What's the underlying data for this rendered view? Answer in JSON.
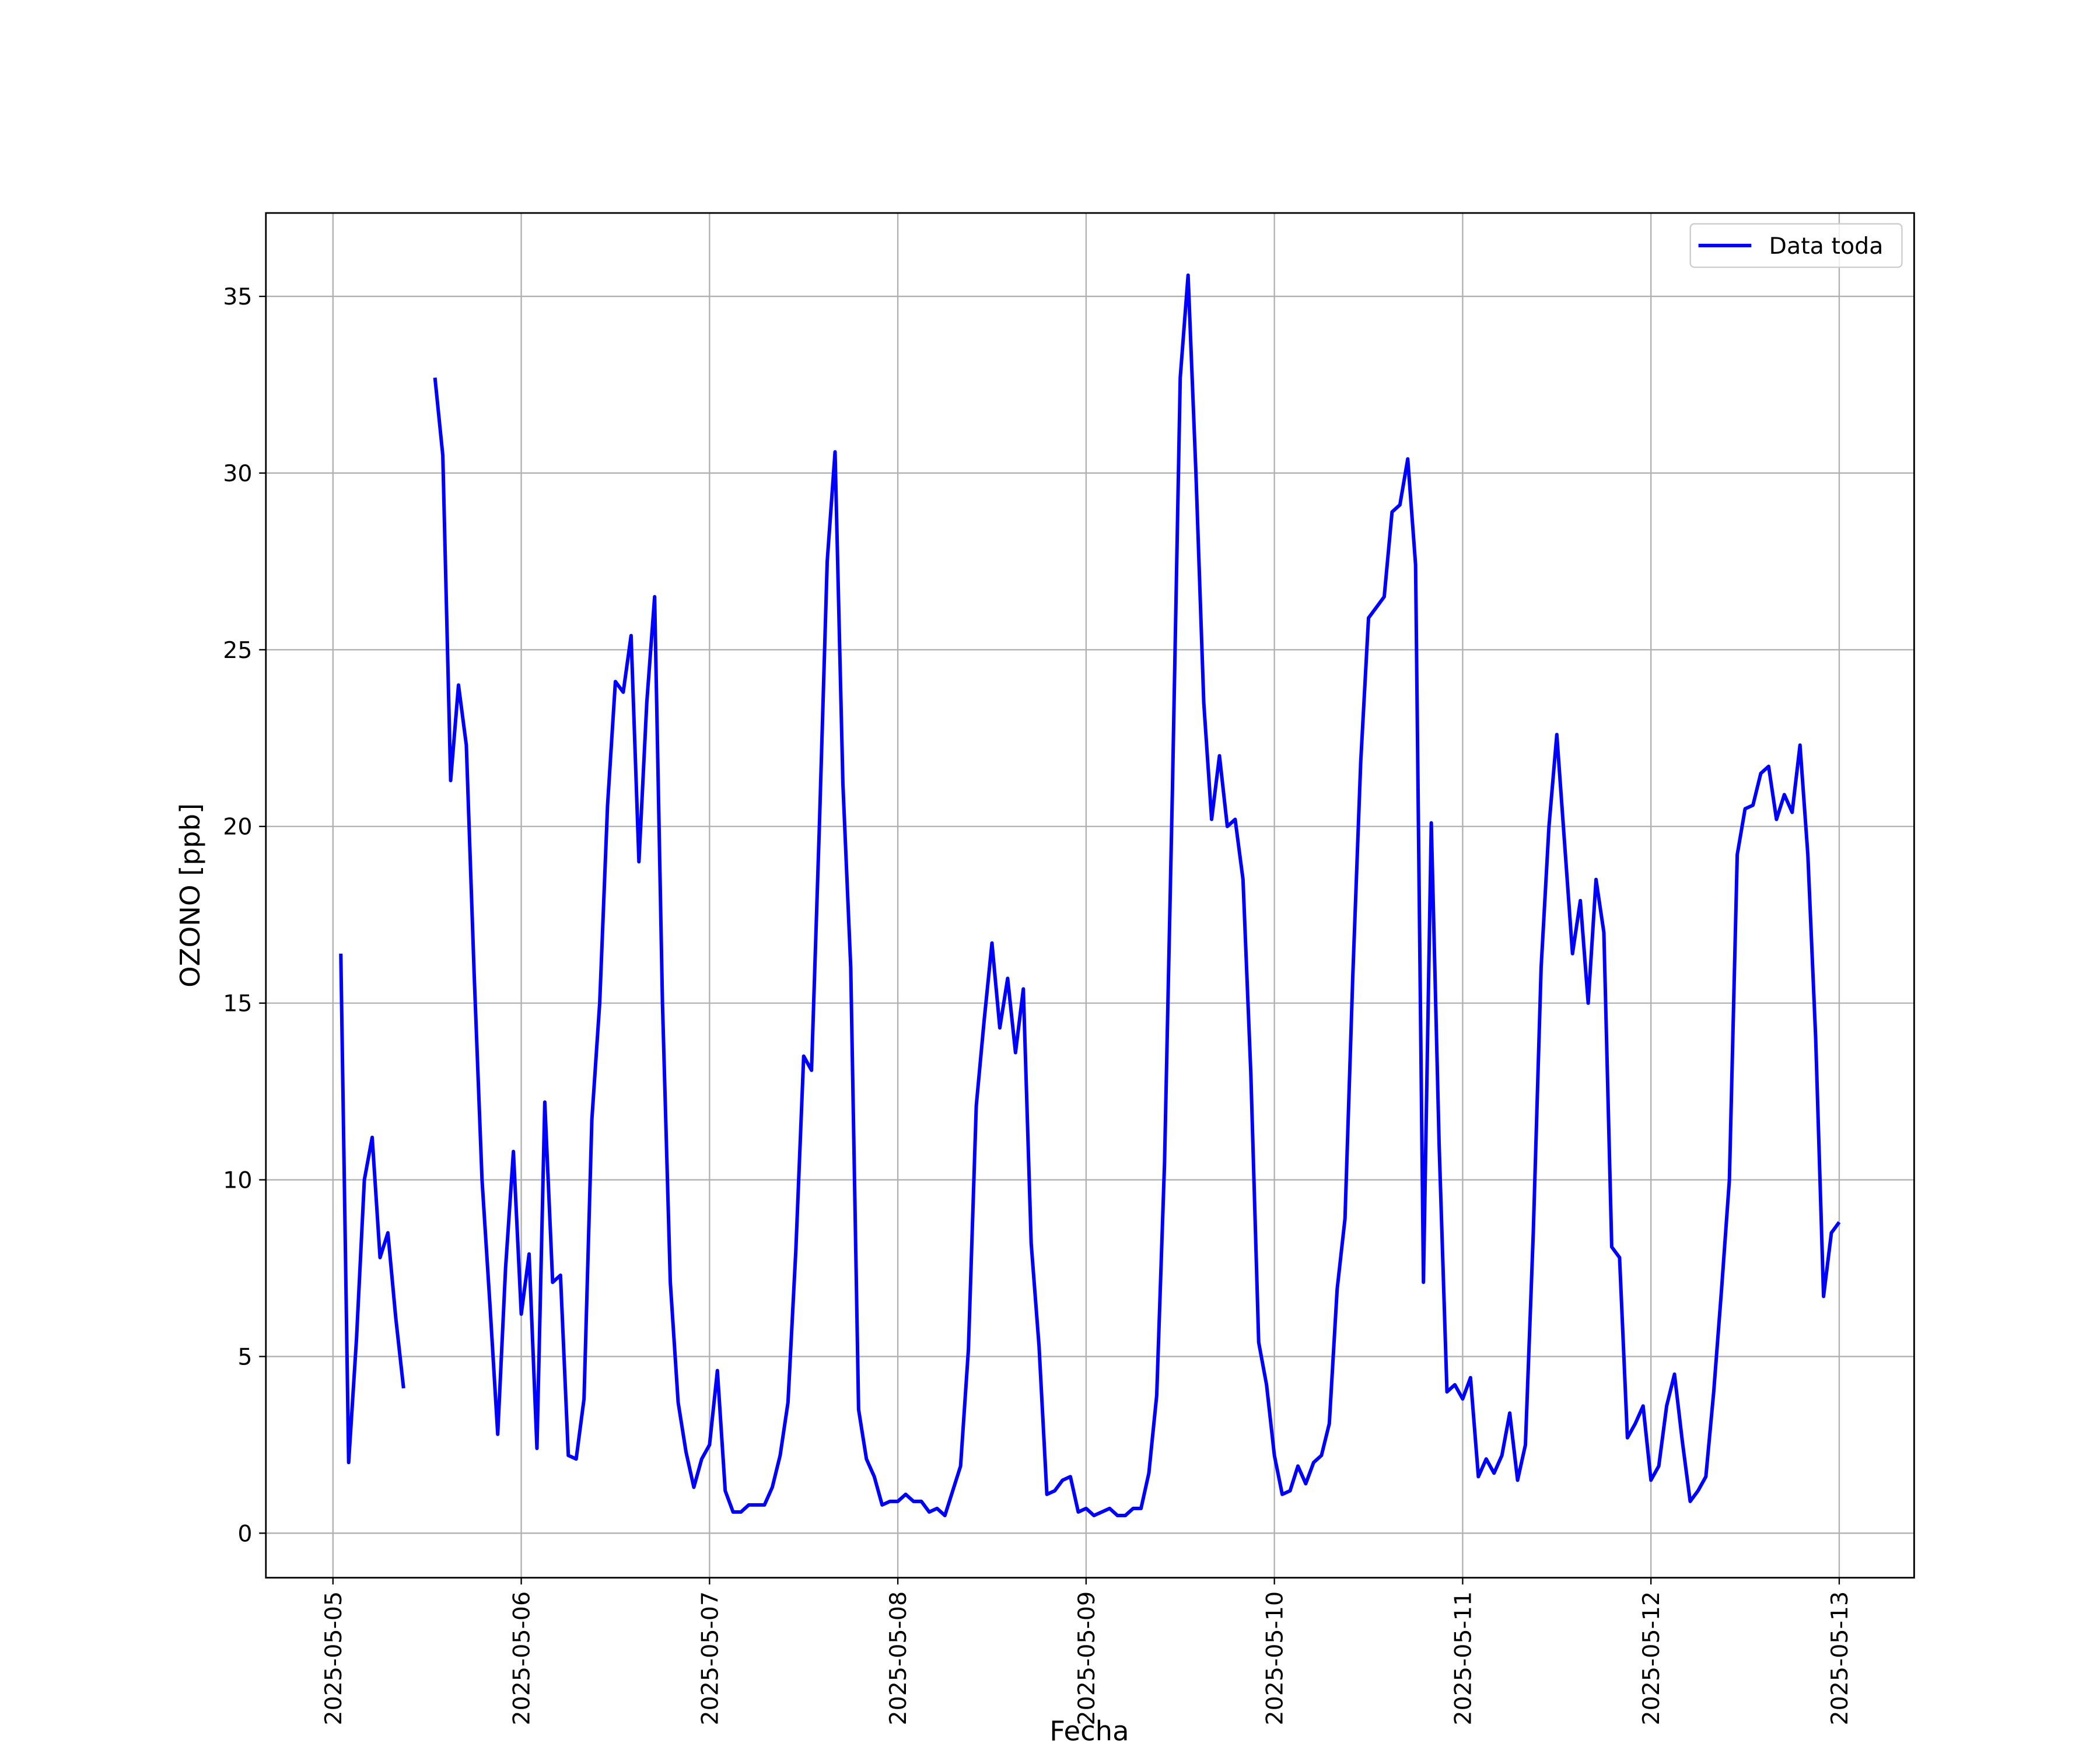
{
  "chart_data": {
    "type": "line",
    "x_label": "Fecha",
    "y_label": "OZONO [ppb]",
    "grid": true,
    "legend": "upper right",
    "xlim": [
      "2025-05-04 15:27",
      "2025-05-13 09:33"
    ],
    "xticks": [
      "2025-05-05",
      "2025-05-06",
      "2025-05-07",
      "2025-05-08",
      "2025-05-09",
      "2025-05-10",
      "2025-05-11",
      "2025-05-12",
      "2025-05-13"
    ],
    "ylim": [
      -1.26,
      37.36
    ],
    "yticks": [
      0,
      5,
      10,
      15,
      20,
      25,
      30,
      35
    ],
    "x": [
      "2025-05-05 01:00",
      "2025-05-05 02:00",
      "2025-05-05 03:00",
      "2025-05-05 04:00",
      "2025-05-05 05:00",
      "2025-05-05 06:00",
      "2025-05-05 07:00",
      "2025-05-05 08:00",
      "2025-05-05 09:00",
      "2025-05-05 10:00",
      "2025-05-05 11:00",
      "2025-05-05 12:00",
      "2025-05-05 13:00",
      "2025-05-05 14:00",
      "2025-05-05 15:00",
      "2025-05-05 16:00",
      "2025-05-05 17:00",
      "2025-05-05 18:00",
      "2025-05-05 19:00",
      "2025-05-05 20:00",
      "2025-05-05 21:00",
      "2025-05-05 22:00",
      "2025-05-05 23:00",
      "2025-05-06 00:00",
      "2025-05-06 01:00",
      "2025-05-06 02:00",
      "2025-05-06 03:00",
      "2025-05-06 04:00",
      "2025-05-06 05:00",
      "2025-05-06 06:00",
      "2025-05-06 07:00",
      "2025-05-06 08:00",
      "2025-05-06 09:00",
      "2025-05-06 10:00",
      "2025-05-06 11:00",
      "2025-05-06 12:00",
      "2025-05-06 13:00",
      "2025-05-06 14:00",
      "2025-05-06 15:00",
      "2025-05-06 16:00",
      "2025-05-06 17:00",
      "2025-05-06 18:00",
      "2025-05-06 19:00",
      "2025-05-06 20:00",
      "2025-05-06 21:00",
      "2025-05-06 22:00",
      "2025-05-06 23:00",
      "2025-05-07 00:00",
      "2025-05-07 01:00",
      "2025-05-07 02:00",
      "2025-05-07 03:00",
      "2025-05-07 04:00",
      "2025-05-07 05:00",
      "2025-05-07 06:00",
      "2025-05-07 07:00",
      "2025-05-07 08:00",
      "2025-05-07 09:00",
      "2025-05-07 10:00",
      "2025-05-07 11:00",
      "2025-05-07 12:00",
      "2025-05-07 13:00",
      "2025-05-07 14:00",
      "2025-05-07 15:00",
      "2025-05-07 16:00",
      "2025-05-07 17:00",
      "2025-05-07 18:00",
      "2025-05-07 19:00",
      "2025-05-07 20:00",
      "2025-05-07 21:00",
      "2025-05-07 22:00",
      "2025-05-07 23:00",
      "2025-05-08 00:00",
      "2025-05-08 01:00",
      "2025-05-08 02:00",
      "2025-05-08 03:00",
      "2025-05-08 04:00",
      "2025-05-08 05:00",
      "2025-05-08 06:00",
      "2025-05-08 07:00",
      "2025-05-08 08:00",
      "2025-05-08 09:00",
      "2025-05-08 10:00",
      "2025-05-08 11:00",
      "2025-05-08 12:00",
      "2025-05-08 13:00",
      "2025-05-08 14:00",
      "2025-05-08 15:00",
      "2025-05-08 16:00",
      "2025-05-08 17:00",
      "2025-05-08 18:00",
      "2025-05-08 19:00",
      "2025-05-08 20:00",
      "2025-05-08 21:00",
      "2025-05-08 22:00",
      "2025-05-08 23:00",
      "2025-05-09 00:00",
      "2025-05-09 01:00",
      "2025-05-09 02:00",
      "2025-05-09 03:00",
      "2025-05-09 04:00",
      "2025-05-09 05:00",
      "2025-05-09 06:00",
      "2025-05-09 07:00",
      "2025-05-09 08:00",
      "2025-05-09 09:00",
      "2025-05-09 10:00",
      "2025-05-09 11:00",
      "2025-05-09 12:00",
      "2025-05-09 13:00",
      "2025-05-09 14:00",
      "2025-05-09 15:00",
      "2025-05-09 16:00",
      "2025-05-09 17:00",
      "2025-05-09 18:00",
      "2025-05-09 19:00",
      "2025-05-09 20:00",
      "2025-05-09 21:00",
      "2025-05-09 22:00",
      "2025-05-09 23:00",
      "2025-05-10 00:00",
      "2025-05-10 01:00",
      "2025-05-10 02:00",
      "2025-05-10 03:00",
      "2025-05-10 04:00",
      "2025-05-10 05:00",
      "2025-05-10 06:00",
      "2025-05-10 07:00",
      "2025-05-10 08:00",
      "2025-05-10 09:00",
      "2025-05-10 10:00",
      "2025-05-10 11:00",
      "2025-05-10 12:00",
      "2025-05-10 13:00",
      "2025-05-10 14:00",
      "2025-05-10 15:00",
      "2025-05-10 16:00",
      "2025-05-10 17:00",
      "2025-05-10 18:00",
      "2025-05-10 19:00",
      "2025-05-10 20:00",
      "2025-05-10 21:00",
      "2025-05-10 22:00",
      "2025-05-10 23:00",
      "2025-05-11 00:00",
      "2025-05-11 01:00",
      "2025-05-11 02:00",
      "2025-05-11 03:00",
      "2025-05-11 04:00",
      "2025-05-11 05:00",
      "2025-05-11 06:00",
      "2025-05-11 07:00",
      "2025-05-11 08:00",
      "2025-05-11 09:00",
      "2025-05-11 10:00",
      "2025-05-11 11:00",
      "2025-05-11 12:00",
      "2025-05-11 13:00",
      "2025-05-11 14:00",
      "2025-05-11 15:00",
      "2025-05-11 16:00",
      "2025-05-11 17:00",
      "2025-05-11 18:00",
      "2025-05-11 19:00",
      "2025-05-11 20:00",
      "2025-05-11 21:00",
      "2025-05-11 22:00",
      "2025-05-11 23:00",
      "2025-05-12 00:00",
      "2025-05-12 01:00",
      "2025-05-12 02:00",
      "2025-05-12 03:00",
      "2025-05-12 04:00",
      "2025-05-12 05:00",
      "2025-05-12 06:00",
      "2025-05-12 07:00",
      "2025-05-12 08:00",
      "2025-05-12 09:00",
      "2025-05-12 10:00",
      "2025-05-12 11:00",
      "2025-05-12 12:00",
      "2025-05-12 13:00",
      "2025-05-12 14:00",
      "2025-05-12 15:00",
      "2025-05-12 16:00",
      "2025-05-12 17:00",
      "2025-05-12 18:00",
      "2025-05-12 19:00",
      "2025-05-12 20:00",
      "2025-05-12 21:00",
      "2025-05-12 22:00",
      "2025-05-12 23:00",
      "2025-05-13 00:00"
    ],
    "series": [
      {
        "name": "Data toda",
        "color": "#0000ff",
        "values": [
          16.4,
          2.0,
          5.5,
          10.0,
          11.2,
          7.8,
          8.5,
          6.1,
          4.1,
          null,
          null,
          null,
          32.7,
          30.5,
          21.3,
          24.0,
          22.3,
          15.8,
          10.0,
          6.5,
          2.8,
          7.5,
          10.8,
          6.2,
          7.9,
          2.4,
          12.2,
          7.1,
          7.3,
          2.2,
          2.1,
          3.8,
          11.7,
          15.0,
          20.6,
          24.1,
          23.8,
          25.4,
          19.0,
          23.5,
          26.5,
          15.0,
          7.1,
          3.7,
          2.3,
          1.3,
          2.1,
          2.5,
          4.6,
          1.2,
          0.6,
          0.6,
          0.8,
          0.8,
          0.8,
          1.3,
          2.2,
          3.7,
          8.0,
          13.5,
          13.1,
          20.0,
          27.5,
          30.6,
          21.2,
          16.0,
          3.5,
          2.1,
          1.6,
          0.8,
          0.9,
          0.9,
          1.1,
          0.9,
          0.9,
          0.6,
          0.7,
          0.5,
          1.2,
          1.9,
          5.2,
          12.1,
          14.5,
          16.7,
          14.3,
          15.7,
          13.6,
          15.4,
          8.2,
          5.3,
          1.1,
          1.2,
          1.5,
          1.6,
          0.6,
          0.7,
          0.5,
          0.6,
          0.7,
          0.5,
          0.5,
          0.7,
          0.7,
          1.7,
          3.9,
          10.5,
          21.0,
          32.7,
          35.6,
          30.0,
          23.5,
          20.2,
          22.0,
          20.0,
          20.2,
          18.5,
          13.0,
          5.4,
          4.2,
          2.2,
          1.1,
          1.2,
          1.9,
          1.4,
          2.0,
          2.2,
          3.1,
          6.9,
          8.9,
          15.8,
          21.8,
          25.9,
          26.2,
          26.5,
          28.9,
          29.1,
          30.4,
          27.4,
          7.1,
          20.1,
          11.0,
          4.0,
          4.2,
          3.8,
          4.4,
          1.6,
          2.1,
          1.7,
          2.2,
          3.4,
          1.5,
          2.5,
          8.5,
          16.0,
          20.0,
          22.6,
          19.5,
          16.4,
          17.9,
          15.0,
          18.5,
          17.0,
          8.1,
          7.8,
          2.7,
          3.1,
          3.6,
          1.5,
          1.9,
          3.6,
          4.5,
          2.6,
          0.9,
          1.2,
          1.6,
          4.0,
          6.9,
          10.0,
          19.2,
          20.5,
          20.6,
          21.5,
          21.7,
          20.2,
          20.9,
          20.4,
          22.3,
          19.2,
          14.0,
          6.7,
          8.5,
          8.8
        ]
      }
    ]
  }
}
